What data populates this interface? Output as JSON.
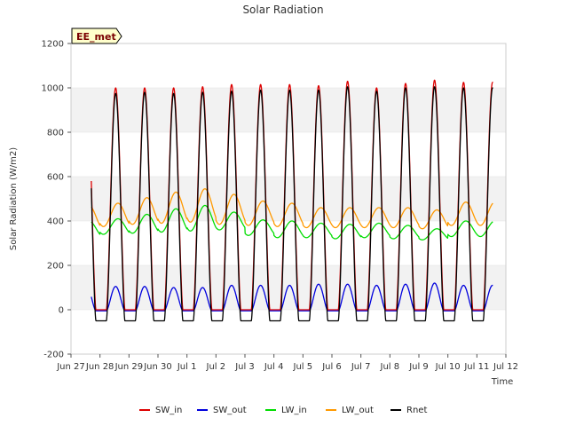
{
  "chart_data": {
    "type": "line",
    "title": "Solar Radiation",
    "xlabel": "Time",
    "ylabel": "Solar Radiation (W/m2)",
    "badge": "EE_met",
    "ylim": [
      -200,
      1200
    ],
    "xlim": [
      0,
      15
    ],
    "yticks": [
      -200,
      0,
      200,
      400,
      600,
      800,
      1000,
      1200
    ],
    "xticks": [
      {
        "x": 0,
        "label": "Jun 27"
      },
      {
        "x": 1,
        "label": "Jun 28"
      },
      {
        "x": 2,
        "label": "Jun 29"
      },
      {
        "x": 3,
        "label": "Jun 30"
      },
      {
        "x": 4,
        "label": "Jul 1"
      },
      {
        "x": 5,
        "label": "Jul 2"
      },
      {
        "x": 6,
        "label": "Jul 3"
      },
      {
        "x": 7,
        "label": "Jul 4"
      },
      {
        "x": 8,
        "label": "Jul 5"
      },
      {
        "x": 9,
        "label": "Jul 6"
      },
      {
        "x": 10,
        "label": "Jul 7"
      },
      {
        "x": 11,
        "label": "Jul 8"
      },
      {
        "x": 12,
        "label": "Jul 9"
      },
      {
        "x": 13,
        "label": "Jul 10"
      },
      {
        "x": 14,
        "label": "Jul 11"
      },
      {
        "x": 15,
        "label": "Jul 12"
      }
    ],
    "data_start_day": 0.7,
    "data_end_day": 14.55,
    "grid": "horizontal bands",
    "legend_position": "bottom",
    "series": [
      {
        "name": "SW_in",
        "color": "#dd0000",
        "daily_peak": [
          1010,
          1000,
          1000,
          1000,
          1005,
          1015,
          1015,
          1015,
          1010,
          1030,
          1000,
          1020,
          1035,
          1025
        ],
        "night": 0
      },
      {
        "name": "SW_out",
        "color": "#0000dd",
        "daily_peak": [
          105,
          105,
          105,
          100,
          100,
          110,
          110,
          110,
          115,
          115,
          110,
          115,
          120,
          110
        ],
        "night": -5
      },
      {
        "name": "LW_in",
        "color": "#00dd00",
        "daily_peak": [
          400,
          410,
          430,
          455,
          470,
          440,
          405,
          400,
          390,
          385,
          390,
          380,
          365,
          400
        ],
        "daily_min": [
          330,
          340,
          345,
          350,
          355,
          360,
          335,
          325,
          325,
          320,
          325,
          320,
          315,
          330
        ]
      },
      {
        "name": "LW_out",
        "color": "#ff9900",
        "daily_peak": [
          470,
          480,
          505,
          530,
          545,
          520,
          490,
          480,
          460,
          460,
          460,
          460,
          450,
          485
        ],
        "daily_min": [
          365,
          375,
          385,
          390,
          395,
          385,
          380,
          375,
          370,
          370,
          370,
          370,
          365,
          380
        ]
      },
      {
        "name": "Rnet",
        "color": "#000000",
        "daily_peak": [
          990,
          975,
          980,
          975,
          980,
          985,
          990,
          990,
          990,
          1005,
          985,
          1000,
          1005,
          1000
        ],
        "night": -50
      }
    ]
  }
}
